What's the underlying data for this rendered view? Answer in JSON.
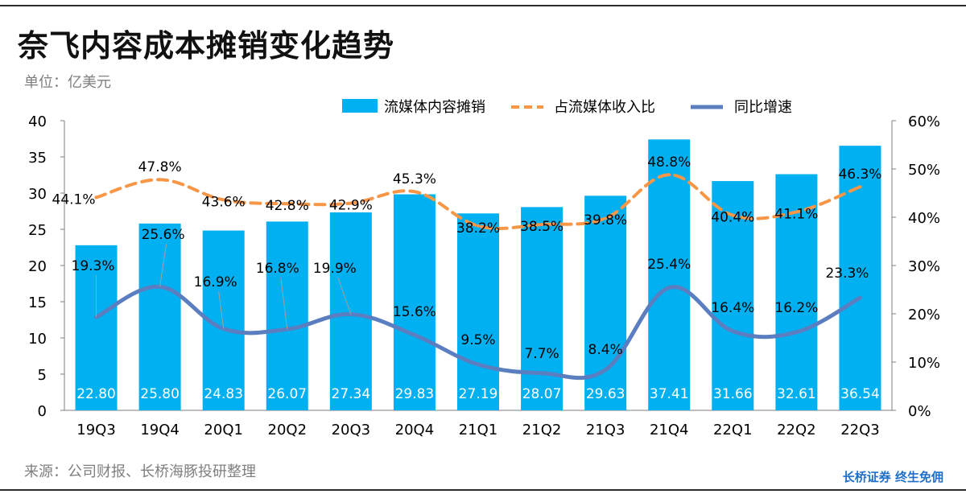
{
  "page": {
    "title": "奈飞内容成本摊销变化趋势",
    "unit": "单位：亿美元",
    "source": "来源：公司财报、长桥海豚投研整理",
    "brand": "长桥证券 终生免佣"
  },
  "chart_data": {
    "type": "bar",
    "categories": [
      "19Q3",
      "19Q4",
      "20Q1",
      "20Q2",
      "20Q3",
      "20Q4",
      "21Q1",
      "21Q2",
      "21Q3",
      "21Q4",
      "22Q1",
      "22Q2",
      "22Q3"
    ],
    "series": [
      {
        "name": "流媒体内容摊销",
        "type": "bar",
        "axis": "left",
        "color": "#00b0f0",
        "values": [
          22.8,
          25.8,
          24.83,
          26.07,
          27.34,
          29.83,
          27.19,
          28.07,
          29.63,
          37.41,
          31.66,
          32.61,
          36.54
        ],
        "labels": [
          "22.80",
          "25.80",
          "24.83",
          "26.07",
          "27.34",
          "29.83",
          "27.19",
          "28.07",
          "29.63",
          "37.41",
          "31.66",
          "32.61",
          "36.54"
        ]
      },
      {
        "name": "占流媒体收入比",
        "type": "line",
        "style": "dashed",
        "axis": "right",
        "color": "#f79646",
        "values": [
          44.1,
          47.8,
          43.6,
          42.8,
          42.9,
          45.3,
          38.2,
          38.5,
          39.8,
          48.8,
          40.4,
          41.1,
          46.3
        ],
        "labels": [
          "44.1%",
          "47.8%",
          "43.6%",
          "42.8%",
          "42.9%",
          "45.3%",
          "38.2%",
          "38.5%",
          "39.8%",
          "48.8%",
          "40.4%",
          "41.1%",
          "46.3%"
        ]
      },
      {
        "name": "同比增速",
        "type": "line",
        "style": "solid",
        "axis": "right",
        "color": "#5b7ec0",
        "values": [
          19.3,
          25.6,
          16.9,
          16.8,
          19.9,
          15.6,
          9.5,
          7.7,
          8.4,
          25.4,
          16.4,
          16.2,
          23.3
        ],
        "labels": [
          "19.3%",
          "25.6%",
          "16.9%",
          "16.8%",
          "19.9%",
          "15.6%",
          "9.5%",
          "7.7%",
          "8.4%",
          "25.4%",
          "16.4%",
          "16.2%",
          "23.3%"
        ]
      }
    ],
    "yleft": {
      "min": 0,
      "max": 40,
      "ticks": [
        "0",
        "5",
        "10",
        "15",
        "20",
        "25",
        "30",
        "35",
        "40"
      ]
    },
    "yright": {
      "min": 0,
      "max": 60,
      "ticks": [
        "0%",
        "10%",
        "20%",
        "30%",
        "40%",
        "50%",
        "60%"
      ]
    },
    "legend_position": "top",
    "grid": false
  }
}
